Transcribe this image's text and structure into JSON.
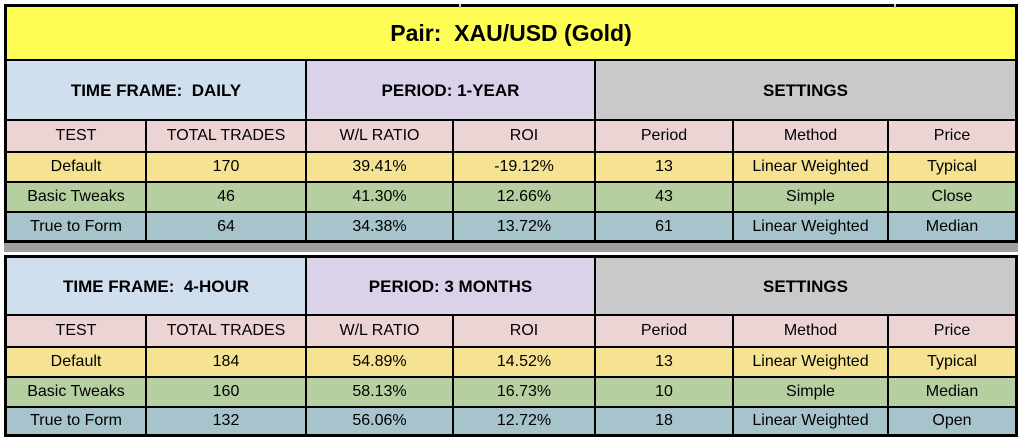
{
  "title": "Pair:  XAU/USD (Gold)",
  "columns": [
    "TEST",
    "TOTAL TRADES",
    "W/L RATIO",
    "ROI",
    "Period",
    "Method",
    "Price"
  ],
  "sections": [
    {
      "time_frame": "TIME FRAME:  DAILY",
      "period_label": "PERIOD: 1-YEAR",
      "settings_label": "SETTINGS",
      "rows": [
        [
          "Default",
          "170",
          "39.41%",
          "-19.12%",
          "13",
          "Linear Weighted",
          "Typical"
        ],
        [
          "Basic Tweaks",
          "46",
          "41.30%",
          "12.66%",
          "43",
          "Simple",
          "Close"
        ],
        [
          "True to Form",
          "64",
          "34.38%",
          "13.72%",
          "61",
          "Linear Weighted",
          "Median"
        ]
      ]
    },
    {
      "time_frame": "TIME FRAME:  4-HOUR",
      "period_label": "PERIOD: 3 MONTHS",
      "settings_label": "SETTINGS",
      "rows": [
        [
          "Default",
          "184",
          "54.89%",
          "14.52%",
          "13",
          "Linear Weighted",
          "Typical"
        ],
        [
          "Basic Tweaks",
          "160",
          "58.13%",
          "16.73%",
          "10",
          "Simple",
          "Median"
        ],
        [
          "True to Form",
          "132",
          "56.06%",
          "12.72%",
          "18",
          "Linear Weighted",
          "Open"
        ]
      ]
    }
  ],
  "colors": {
    "title_bg": "#fdfd54",
    "time_frame_bg": "#cfdfee",
    "period_bg": "#d9d2e9",
    "settings_bg": "#c9c9c9",
    "header_row_bg": "#ecd3d4",
    "row_default_bg": "#f5e292",
    "row_basic_tweaks_bg": "#b5cfa1",
    "row_true_to_form_bg": "#a7c3cb",
    "separator_bg": "#9e9e9e",
    "border": "#000000"
  }
}
